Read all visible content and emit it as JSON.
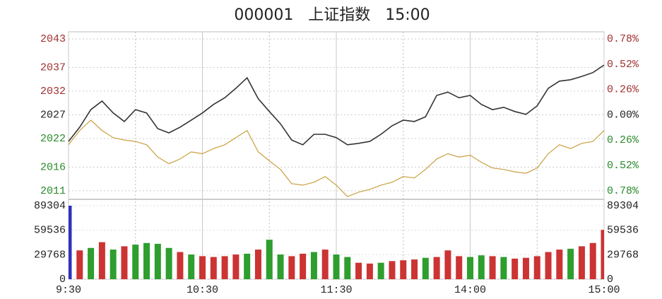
{
  "chart_data": [
    {
      "type": "line",
      "title": "000001   上证指数   15:00",
      "x": [
        0,
        5,
        10,
        15,
        20,
        25,
        30,
        35,
        40,
        45,
        50,
        55,
        60,
        65,
        70,
        75,
        80,
        85,
        90,
        95,
        100,
        105,
        110,
        115,
        120,
        125,
        130,
        135,
        140,
        145,
        150,
        155,
        160,
        165,
        170,
        175,
        180,
        185,
        190,
        195,
        200,
        205,
        210,
        215,
        220,
        225,
        230,
        235,
        240
      ],
      "xlim": [
        0,
        240
      ],
      "ylim": [
        2009.2,
        2044.5
      ],
      "yticks": [
        2043,
        2037,
        2032,
        2027,
        2022,
        2016,
        2011
      ],
      "y2lim": [
        -0.868,
        0.853
      ],
      "y2ticks": [
        {
          "value": 0.78,
          "label": "0.78%"
        },
        {
          "value": 0.52,
          "label": "0.52%"
        },
        {
          "value": 0.26,
          "label": "0.26%"
        },
        {
          "value": 0,
          "label": "0.00%"
        },
        {
          "value": -0.26,
          "label": "0.26%"
        },
        {
          "value": -0.52,
          "label": "0.52%"
        },
        {
          "value": -0.78,
          "label": "0.78%"
        }
      ],
      "grid": true,
      "series": [
        {
          "color": "#333333",
          "values": [
            2021.4,
            2024.4,
            2028.1,
            2029.9,
            2027.4,
            2025.6,
            2028.1,
            2027.4,
            2024.1,
            2023.2,
            2024.4,
            2025.9,
            2027.4,
            2029.2,
            2030.6,
            2032.6,
            2034.8,
            2030.4,
            2027.7,
            2025.1,
            2021.7,
            2020.7,
            2022.9,
            2022.9,
            2022.2,
            2020.7,
            2021.0,
            2021.4,
            2022.9,
            2024.7,
            2025.9,
            2025.6,
            2026.6,
            2031.1,
            2031.8,
            2030.6,
            2031.1,
            2029.2,
            2028.1,
            2028.6,
            2027.7,
            2027.1,
            2028.9,
            2032.6,
            2034.1,
            2034.4,
            2035.1,
            2035.9,
            2037.5
          ]
        },
        {
          "color": "#c8a040",
          "values": [
            2020.7,
            2023.7,
            2025.9,
            2023.7,
            2022.2,
            2021.7,
            2021.4,
            2020.7,
            2018.1,
            2016.7,
            2017.7,
            2019.2,
            2018.8,
            2019.9,
            2020.7,
            2022.2,
            2023.7,
            2019.2,
            2017.3,
            2015.5,
            2012.5,
            2012.2,
            2012.8,
            2014.0,
            2012.2,
            2009.8,
            2010.7,
            2011.3,
            2012.2,
            2012.8,
            2014.0,
            2013.7,
            2015.5,
            2017.7,
            2018.8,
            2018.1,
            2018.5,
            2017.0,
            2015.8,
            2015.5,
            2015.0,
            2014.7,
            2015.8,
            2018.8,
            2020.7,
            2019.9,
            2021.0,
            2021.4,
            2023.7
          ]
        }
      ]
    },
    {
      "type": "bar",
      "x": [
        0,
        5,
        10,
        15,
        20,
        25,
        30,
        35,
        40,
        45,
        50,
        55,
        60,
        65,
        70,
        75,
        80,
        85,
        90,
        95,
        100,
        105,
        110,
        115,
        120,
        125,
        130,
        135,
        140,
        145,
        150,
        155,
        160,
        165,
        170,
        175,
        180,
        185,
        190,
        195,
        200,
        205,
        210,
        215,
        220,
        225,
        230,
        235,
        240
      ],
      "xlim": [
        0,
        240
      ],
      "xticks": [
        {
          "value": 0,
          "label": "9:30"
        },
        {
          "value": 60,
          "label": "10:30"
        },
        {
          "value": 120,
          "label": "11:30"
        },
        {
          "value": 180,
          "label": "14:00"
        },
        {
          "value": 240,
          "label": "15:00"
        }
      ],
      "ylim": [
        0,
        89304
      ],
      "yticks": [
        89304,
        59536,
        29768,
        0
      ],
      "values": [
        89304,
        35000,
        38000,
        45000,
        36000,
        40000,
        42000,
        44000,
        43000,
        38000,
        33000,
        30000,
        28000,
        27000,
        28000,
        30000,
        31000,
        36000,
        48000,
        30000,
        28000,
        31000,
        33000,
        36000,
        30000,
        27000,
        20000,
        19000,
        20000,
        22000,
        23000,
        24000,
        26000,
        27000,
        35000,
        28000,
        27000,
        29000,
        28000,
        27000,
        25000,
        26000,
        28000,
        33000,
        36000,
        37000,
        40000,
        44000,
        60000
      ],
      "colors": [
        "#3030c0",
        "#cc3333",
        "#2e9e2e",
        "#cc3333",
        "#2e9e2e",
        "#cc3333",
        "#2e9e2e",
        "#2e9e2e",
        "#2e9e2e",
        "#2e9e2e",
        "#cc3333",
        "#2e9e2e",
        "#cc3333",
        "#cc3333",
        "#cc3333",
        "#cc3333",
        "#2e9e2e",
        "#cc3333",
        "#2e9e2e",
        "#2e9e2e",
        "#cc3333",
        "#cc3333",
        "#2e9e2e",
        "#cc3333",
        "#2e9e2e",
        "#2e9e2e",
        "#cc3333",
        "#cc3333",
        "#2e9e2e",
        "#cc3333",
        "#cc3333",
        "#cc3333",
        "#2e9e2e",
        "#cc3333",
        "#cc3333",
        "#cc3333",
        "#2e9e2e",
        "#2e9e2e",
        "#cc3333",
        "#2e9e2e",
        "#cc3333",
        "#cc3333",
        "#cc3333",
        "#cc3333",
        "#cc3333",
        "#2e9e2e",
        "#cc3333",
        "#cc3333",
        "#cc3333"
      ]
    }
  ]
}
